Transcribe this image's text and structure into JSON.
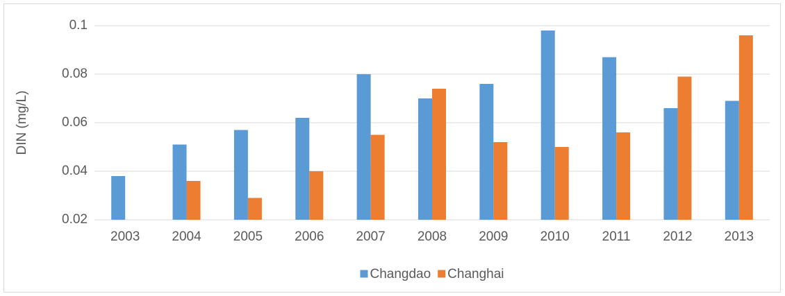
{
  "chart_data": {
    "type": "bar",
    "y_label": "DIN (mg/L)",
    "categories": [
      "2003",
      "2004",
      "2005",
      "2006",
      "2007",
      "2008",
      "2009",
      "2010",
      "2011",
      "2012",
      "2013"
    ],
    "series": [
      {
        "name": "Changdao",
        "color": "#5b9bd5",
        "values": [
          0.038,
          0.051,
          0.057,
          0.062,
          0.08,
          0.07,
          0.076,
          0.098,
          0.087,
          0.066,
          0.069
        ]
      },
      {
        "name": "Changhai",
        "color": "#ed7d31",
        "values": [
          null,
          0.036,
          0.029,
          0.04,
          0.055,
          0.074,
          0.052,
          0.05,
          0.056,
          0.079,
          0.096
        ]
      }
    ],
    "ylim": [
      0.02,
      0.1
    ],
    "yticks": [
      0.02,
      0.04,
      0.06,
      0.08,
      0.1
    ],
    "grid": true,
    "legend": "bottom"
  }
}
